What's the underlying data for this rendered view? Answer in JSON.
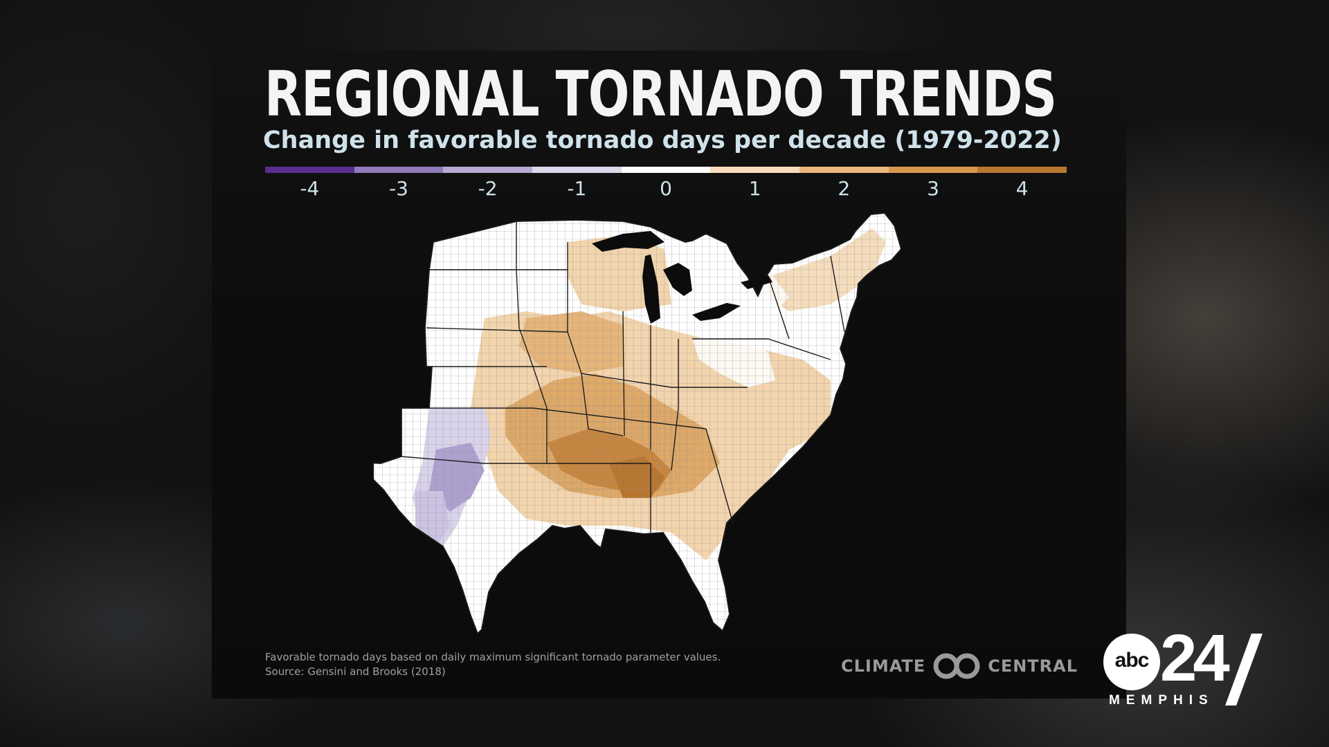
{
  "title": "REGIONAL TORNADO TRENDS",
  "subtitle": "Change in favorable tornado days per decade (1979-2022)",
  "legend": {
    "segment_colors": [
      "#5a2e8c",
      "#8f79b8",
      "#b6aad4",
      "#ddd8ec",
      "#ffffff",
      "#f6dcbc",
      "#eab77c",
      "#d9974e",
      "#b87630"
    ],
    "tick_labels": [
      "-4",
      "-3",
      "-2",
      "-1",
      "0",
      "1",
      "2",
      "3",
      "4"
    ],
    "tick_values": [
      -4,
      -3,
      -2,
      -1,
      0,
      1,
      2,
      3,
      4
    ],
    "min": -4.5,
    "max": 4.5
  },
  "map": {
    "region": "Eastern and Central United States",
    "unit_boundaries": "counties",
    "colors": {
      "increase_strong": "#c8853c",
      "increase_moderate": "#dfa968",
      "increase_light": "#f2d4ad",
      "neutral": "#ffffff",
      "decrease_light": "#d9d3ea",
      "decrease_moderate": "#aea1cf",
      "boundary": "#2a2a2a"
    }
  },
  "footnote": {
    "line1": "Favorable tornado days based on daily maximum significant tornado parameter values.",
    "line2": "Source: Gensini and Brooks (2018)"
  },
  "climate_central_logo": {
    "left_text": "CLIMATE",
    "right_text": "CENTRAL"
  },
  "station_logo": {
    "network": "abc",
    "channel": "24",
    "city": "MEMPHIS"
  }
}
